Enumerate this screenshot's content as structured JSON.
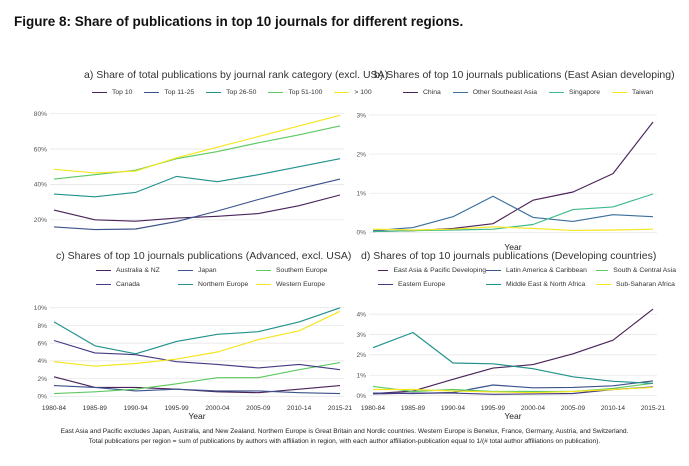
{
  "figure_title": "Figure 8: Share of publications in top 10 journals for different regions.",
  "footnote_1": "East Asia and Pacific excludes Japan, Australia, and New Zealand. Northern Europe is Great Britain and Nordic countries. Western Europe is Benelux, France, Germany, Austria, and Switzerland.",
  "footnote_2": "Total publications per region = sum of publications by authors with affiliation in region, with each author affiliation-publication equal to 1/(# total author affiliations on publication).",
  "chart_data": [
    {
      "id": "a",
      "type": "line",
      "title": "a) Share of total publications by journal rank category (excl. USA)",
      "xlabel": "",
      "ylabel": "",
      "show_x_ticks": false,
      "categories": [
        "1980-84",
        "1985-89",
        "1990-94",
        "1995-99",
        "2000-04",
        "2005-09",
        "2010-14",
        "2015-21"
      ],
      "ylim": [
        12,
        82
      ],
      "yticks": [
        20,
        40,
        60,
        80
      ],
      "ytick_labels": [
        "20%",
        "40%",
        "60%",
        "80%"
      ],
      "grid": true,
      "series": [
        {
          "name": "Top 10",
          "color": "#4a235a",
          "values": [
            25.5,
            20,
            19.2,
            21,
            22,
            23.5,
            28,
            34
          ]
        },
        {
          "name": "Top 11-25",
          "color": "#3b528b",
          "values": [
            16,
            14.5,
            14.8,
            19,
            25,
            31.5,
            37.5,
            43
          ]
        },
        {
          "name": "Top 26-50",
          "color": "#21918c",
          "values": [
            34.5,
            33,
            35.5,
            44.5,
            41.5,
            45.5,
            50,
            54.5
          ]
        },
        {
          "name": "Top 51-100",
          "color": "#5ec962",
          "values": [
            43,
            45.5,
            48,
            54.5,
            58.5,
            63.5,
            68,
            73
          ]
        },
        {
          "name": "> 100",
          "color": "#f5e61e",
          "values": [
            48.5,
            46.5,
            47.5,
            55,
            61,
            67,
            73,
            79
          ]
        }
      ]
    },
    {
      "id": "b",
      "type": "line",
      "title": "b) Shares of top 10 journals publications (East Asian developing)",
      "xlabel": "Year",
      "ylabel": "",
      "show_x_ticks": false,
      "categories": [
        "1980-84",
        "1985-89",
        "1990-94",
        "1995-99",
        "2000-04",
        "2005-09",
        "2010-14",
        "2015-21"
      ],
      "ylim": [
        -0.12,
        3.05
      ],
      "yticks": [
        0,
        1,
        2,
        3
      ],
      "ytick_labels": [
        "0%",
        "1%",
        "2%",
        "3%"
      ],
      "grid": true,
      "series": [
        {
          "name": "China",
          "color": "#4a235a",
          "values": [
            0.02,
            0.04,
            0.1,
            0.22,
            0.82,
            1.03,
            1.5,
            2.82
          ]
        },
        {
          "name": "Other Southeast Asia",
          "color": "#3b6e9b",
          "values": [
            0.04,
            0.12,
            0.4,
            0.92,
            0.38,
            0.28,
            0.45,
            0.4
          ]
        },
        {
          "name": "Singapore",
          "color": "#3dbb8a",
          "values": [
            0.02,
            0.04,
            0.06,
            0.08,
            0.2,
            0.58,
            0.65,
            0.98
          ]
        },
        {
          "name": "Taiwan",
          "color": "#f5e61e",
          "values": [
            0.08,
            0.06,
            0.08,
            0.14,
            0.1,
            0.05,
            0.06,
            0.08
          ]
        }
      ]
    },
    {
      "id": "c",
      "type": "line",
      "title": "c) Shares of top 10 journals publications (Advanced, excl. USA)",
      "xlabel": "Year",
      "ylabel": "",
      "show_x_ticks": true,
      "categories": [
        "1980-84",
        "1985-89",
        "1990-94",
        "1995-99",
        "2000-04",
        "2005-09",
        "2010-14",
        "2015-21"
      ],
      "ylim": [
        -0.2,
        10.2
      ],
      "yticks": [
        0,
        2,
        4,
        6,
        8,
        10
      ],
      "ytick_labels": [
        "0%",
        "2%",
        "4%",
        "6%",
        "8%",
        "10%"
      ],
      "grid": true,
      "series": [
        {
          "name": "Australia & NZ",
          "color": "#4a235a",
          "values": [
            2.2,
            1,
            1,
            0.8,
            0.5,
            0.4,
            0.8,
            1.2
          ]
        },
        {
          "name": "Japan",
          "color": "#3b528b",
          "values": [
            1.2,
            1,
            0.6,
            0.8,
            0.6,
            0.6,
            0.4,
            0.3
          ]
        },
        {
          "name": "Southern Europe",
          "color": "#5ec962",
          "values": [
            0.3,
            0.5,
            0.8,
            1.4,
            2.1,
            2.1,
            3,
            3.8
          ]
        },
        {
          "name": "Canada",
          "color": "#443a83",
          "values": [
            6.3,
            4.9,
            4.7,
            3.9,
            3.6,
            3.2,
            3.6,
            3
          ]
        },
        {
          "name": "Northern Europe",
          "color": "#21918c",
          "values": [
            8.4,
            5.7,
            4.8,
            6.2,
            7,
            7.3,
            8.4,
            10
          ]
        },
        {
          "name": "Western Europe",
          "color": "#f5e61e",
          "values": [
            3.9,
            3.4,
            3.7,
            4.2,
            5,
            6.4,
            7.4,
            9.6
          ]
        }
      ]
    },
    {
      "id": "d",
      "type": "line",
      "title": "d) Shares of top 10 journals publications (Developing countries)",
      "xlabel": "Year",
      "ylabel": "",
      "show_x_ticks": true,
      "categories": [
        "1980-84",
        "1985-89",
        "1990-94",
        "1995-99",
        "2000-04",
        "2005-09",
        "2010-14",
        "2015-21"
      ],
      "ylim": [
        -0.12,
        4.4
      ],
      "yticks": [
        0,
        1,
        2,
        3,
        4
      ],
      "ytick_labels": [
        "0%",
        "1%",
        "2%",
        "3%",
        "4%"
      ],
      "grid": true,
      "series": [
        {
          "name": "East Asia & Pacific Developing",
          "color": "#4a235a",
          "values": [
            0.1,
            0.22,
            0.8,
            1.35,
            1.52,
            2.05,
            2.72,
            4.25
          ]
        },
        {
          "name": "Latin America & Caribbean",
          "color": "#3b528b",
          "values": [
            0.12,
            0.1,
            0.15,
            0.52,
            0.38,
            0.4,
            0.48,
            0.72
          ]
        },
        {
          "name": "South & Central Asia",
          "color": "#5ec962",
          "values": [
            0.45,
            0.2,
            0.3,
            0.2,
            0.2,
            0.2,
            0.35,
            0.6
          ]
        },
        {
          "name": "Eastern Europe",
          "color": "#443a83",
          "values": [
            0.08,
            0.12,
            0.12,
            0.06,
            0.08,
            0.1,
            0.3,
            0.42
          ]
        },
        {
          "name": "Middle East & North Africa",
          "color": "#21918c",
          "values": [
            2.35,
            3.1,
            1.6,
            1.56,
            1.32,
            0.92,
            0.7,
            0.6
          ]
        },
        {
          "name": "Sub-Saharan Africa",
          "color": "#f5e61e",
          "values": [
            0.3,
            0.3,
            0.22,
            0.18,
            0.14,
            0.2,
            0.3,
            0.4
          ]
        }
      ]
    }
  ]
}
